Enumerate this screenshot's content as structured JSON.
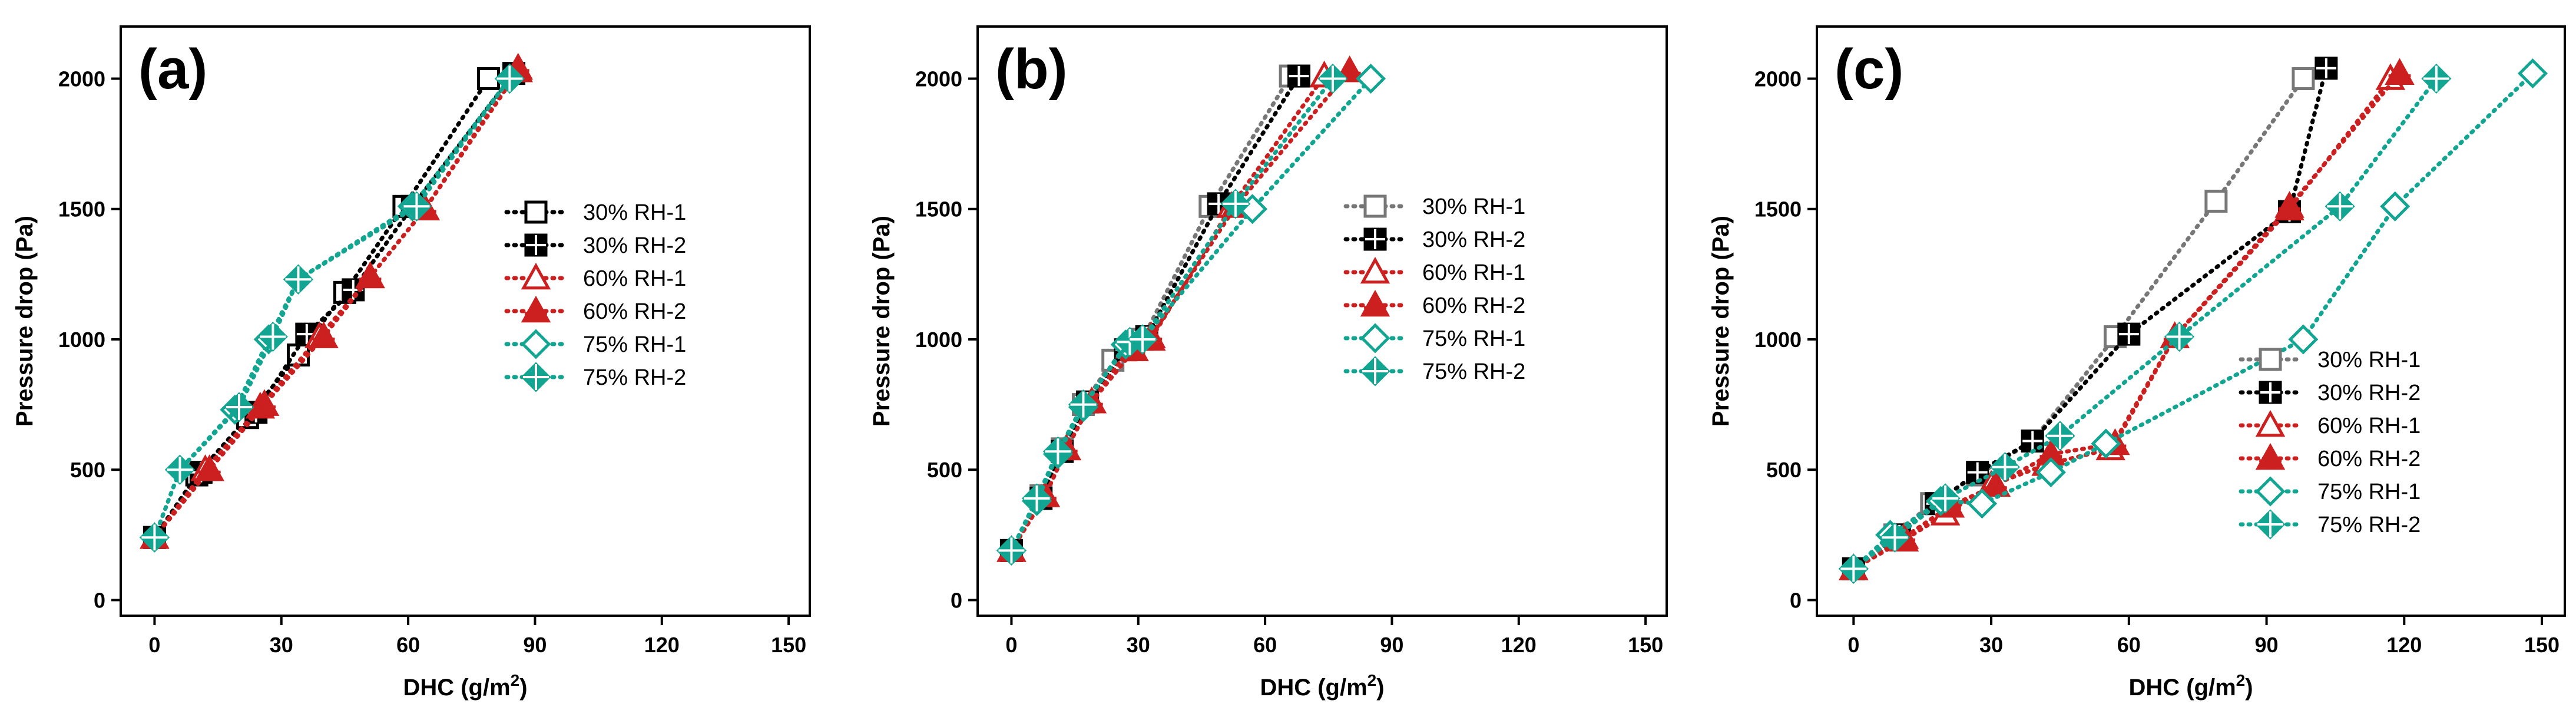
{
  "chart_data": [
    {
      "type": "line",
      "panel_label": "(a)",
      "xlabel_base": "DHC (g/m",
      "xlabel_sup": "2",
      "xlabel_end": ")",
      "ylabel": "Pressure drop (Pa)",
      "xlim": [
        -8,
        155
      ],
      "ylim": [
        -60,
        2200
      ],
      "xticks": [
        0,
        30,
        60,
        90,
        120,
        150
      ],
      "yticks": [
        0,
        500,
        1000,
        1500,
        2000
      ],
      "legend_position": "right",
      "series": [
        {
          "name": "30% RH-1",
          "color": "#000000",
          "marker": "square-open",
          "x": [
            0,
            10,
            22,
            34,
            45,
            59,
            79
          ],
          "y": [
            240,
            480,
            700,
            940,
            1180,
            1510,
            2000
          ]
        },
        {
          "name": "30% RH-2",
          "color": "#000000",
          "marker": "square-cross",
          "x": [
            0,
            11,
            24,
            36,
            47,
            61,
            85
          ],
          "y": [
            240,
            490,
            720,
            1020,
            1190,
            1510,
            2020
          ]
        },
        {
          "name": "60% RH-1",
          "color": "#cc1f1f",
          "marker": "triangle-open",
          "x": [
            0,
            12,
            25,
            39,
            51,
            64,
            86
          ],
          "y": [
            240,
            500,
            740,
            1010,
            1240,
            1500,
            2030
          ]
        },
        {
          "name": "60% RH-2",
          "color": "#cc1f1f",
          "marker": "triangle-filled",
          "x": [
            0,
            13,
            26,
            40,
            51,
            64,
            86
          ],
          "y": [
            240,
            500,
            750,
            1010,
            1240,
            1500,
            2040
          ]
        },
        {
          "name": "75% RH-1",
          "color": "#12a591",
          "marker": "diamond-open",
          "x": [
            0,
            6,
            19,
            27,
            34,
            61,
            84
          ],
          "y": [
            240,
            500,
            730,
            1000,
            1230,
            1510,
            2000
          ]
        },
        {
          "name": "75% RH-2",
          "color": "#12a591",
          "marker": "diamond-cross",
          "x": [
            0,
            6,
            20,
            28,
            34,
            62,
            84
          ],
          "y": [
            240,
            500,
            740,
            1010,
            1230,
            1510,
            2000
          ]
        }
      ]
    },
    {
      "type": "line",
      "panel_label": "(b)",
      "xlabel_base": "DHC (g/m",
      "xlabel_sup": "2",
      "xlabel_end": ")",
      "ylabel": "Pressure drop (Pa)",
      "xlim": [
        -8,
        155
      ],
      "ylim": [
        -60,
        2200
      ],
      "xticks": [
        0,
        30,
        60,
        90,
        120,
        150
      ],
      "yticks": [
        0,
        500,
        1000,
        1500,
        2000
      ],
      "legend_position": "right",
      "series": [
        {
          "name": "30% RH-1",
          "color": "#777777",
          "marker": "square-open",
          "x": [
            0,
            7,
            12,
            17,
            24,
            31,
            47,
            66
          ],
          "y": [
            190,
            400,
            580,
            750,
            920,
            1000,
            1510,
            2010
          ]
        },
        {
          "name": "30% RH-2",
          "color": "#000000",
          "marker": "square-cross",
          "x": [
            0,
            7,
            12,
            18,
            27,
            32,
            49,
            68
          ],
          "y": [
            190,
            390,
            570,
            760,
            960,
            1010,
            1520,
            2010
          ]
        },
        {
          "name": "60% RH-1",
          "color": "#cc1f1f",
          "marker": "triangle-open",
          "x": [
            0,
            8,
            13,
            19,
            28,
            33,
            52,
            74
          ],
          "y": [
            190,
            400,
            580,
            760,
            970,
            1000,
            1510,
            2010
          ]
        },
        {
          "name": "60% RH-2",
          "color": "#cc1f1f",
          "marker": "triangle-filled",
          "x": [
            0,
            8,
            13,
            19,
            29,
            33,
            53,
            80
          ],
          "y": [
            190,
            400,
            580,
            760,
            960,
            1010,
            1510,
            2030
          ]
        },
        {
          "name": "75% RH-1",
          "color": "#12a591",
          "marker": "diamond-open",
          "x": [
            0,
            6,
            11,
            17,
            27,
            31,
            57,
            85
          ],
          "y": [
            190,
            380,
            560,
            740,
            980,
            1000,
            1500,
            2000
          ]
        },
        {
          "name": "75% RH-2",
          "color": "#12a591",
          "marker": "diamond-cross",
          "x": [
            0,
            6,
            11,
            17,
            28,
            31,
            53,
            76
          ],
          "y": [
            190,
            390,
            570,
            750,
            990,
            1000,
            1520,
            2000
          ]
        }
      ]
    },
    {
      "type": "line",
      "panel_label": "(c)",
      "xlabel_base": "DHC (g/m",
      "xlabel_sup": "2",
      "xlabel_end": ")",
      "ylabel": "Pressure drop (Pa)",
      "xlim": [
        -8,
        155
      ],
      "ylim": [
        -60,
        2200
      ],
      "xticks": [
        0,
        30,
        60,
        90,
        120,
        150
      ],
      "yticks": [
        0,
        500,
        1000,
        1500,
        2000
      ],
      "legend_position": "bottom-right",
      "series": [
        {
          "name": "30% RH-1",
          "color": "#777777",
          "marker": "square-open",
          "x": [
            0,
            9,
            17,
            27,
            39,
            57,
            79,
            98
          ],
          "y": [
            120,
            250,
            370,
            480,
            610,
            1010,
            1530,
            2000
          ]
        },
        {
          "name": "30% RH-2",
          "color": "#000000",
          "marker": "square-cross",
          "x": [
            0,
            10,
            18,
            27,
            39,
            60,
            95,
            103
          ],
          "y": [
            120,
            250,
            370,
            490,
            610,
            1020,
            1490,
            2040
          ]
        },
        {
          "name": "60% RH-1",
          "color": "#cc1f1f",
          "marker": "triangle-open",
          "x": [
            0,
            11,
            20,
            30,
            42,
            56,
            70,
            95,
            117
          ],
          "y": [
            120,
            230,
            330,
            440,
            520,
            580,
            1010,
            1500,
            2000
          ]
        },
        {
          "name": "60% RH-2",
          "color": "#cc1f1f",
          "marker": "triangle-filled",
          "x": [
            0,
            11,
            21,
            31,
            43,
            57,
            70,
            95,
            119
          ],
          "y": [
            120,
            240,
            360,
            440,
            560,
            600,
            1010,
            1510,
            2020
          ]
        },
        {
          "name": "75% RH-1",
          "color": "#12a591",
          "marker": "diamond-open",
          "x": [
            0,
            8,
            19,
            28,
            43,
            55,
            98,
            118,
            148
          ],
          "y": [
            120,
            250,
            380,
            370,
            490,
            600,
            1000,
            1510,
            2020
          ]
        },
        {
          "name": "75% RH-2",
          "color": "#12a591",
          "marker": "diamond-cross",
          "x": [
            0,
            9,
            20,
            33,
            45,
            71,
            106,
            127
          ],
          "y": [
            120,
            240,
            390,
            510,
            630,
            1010,
            1510,
            2000
          ]
        }
      ]
    }
  ]
}
